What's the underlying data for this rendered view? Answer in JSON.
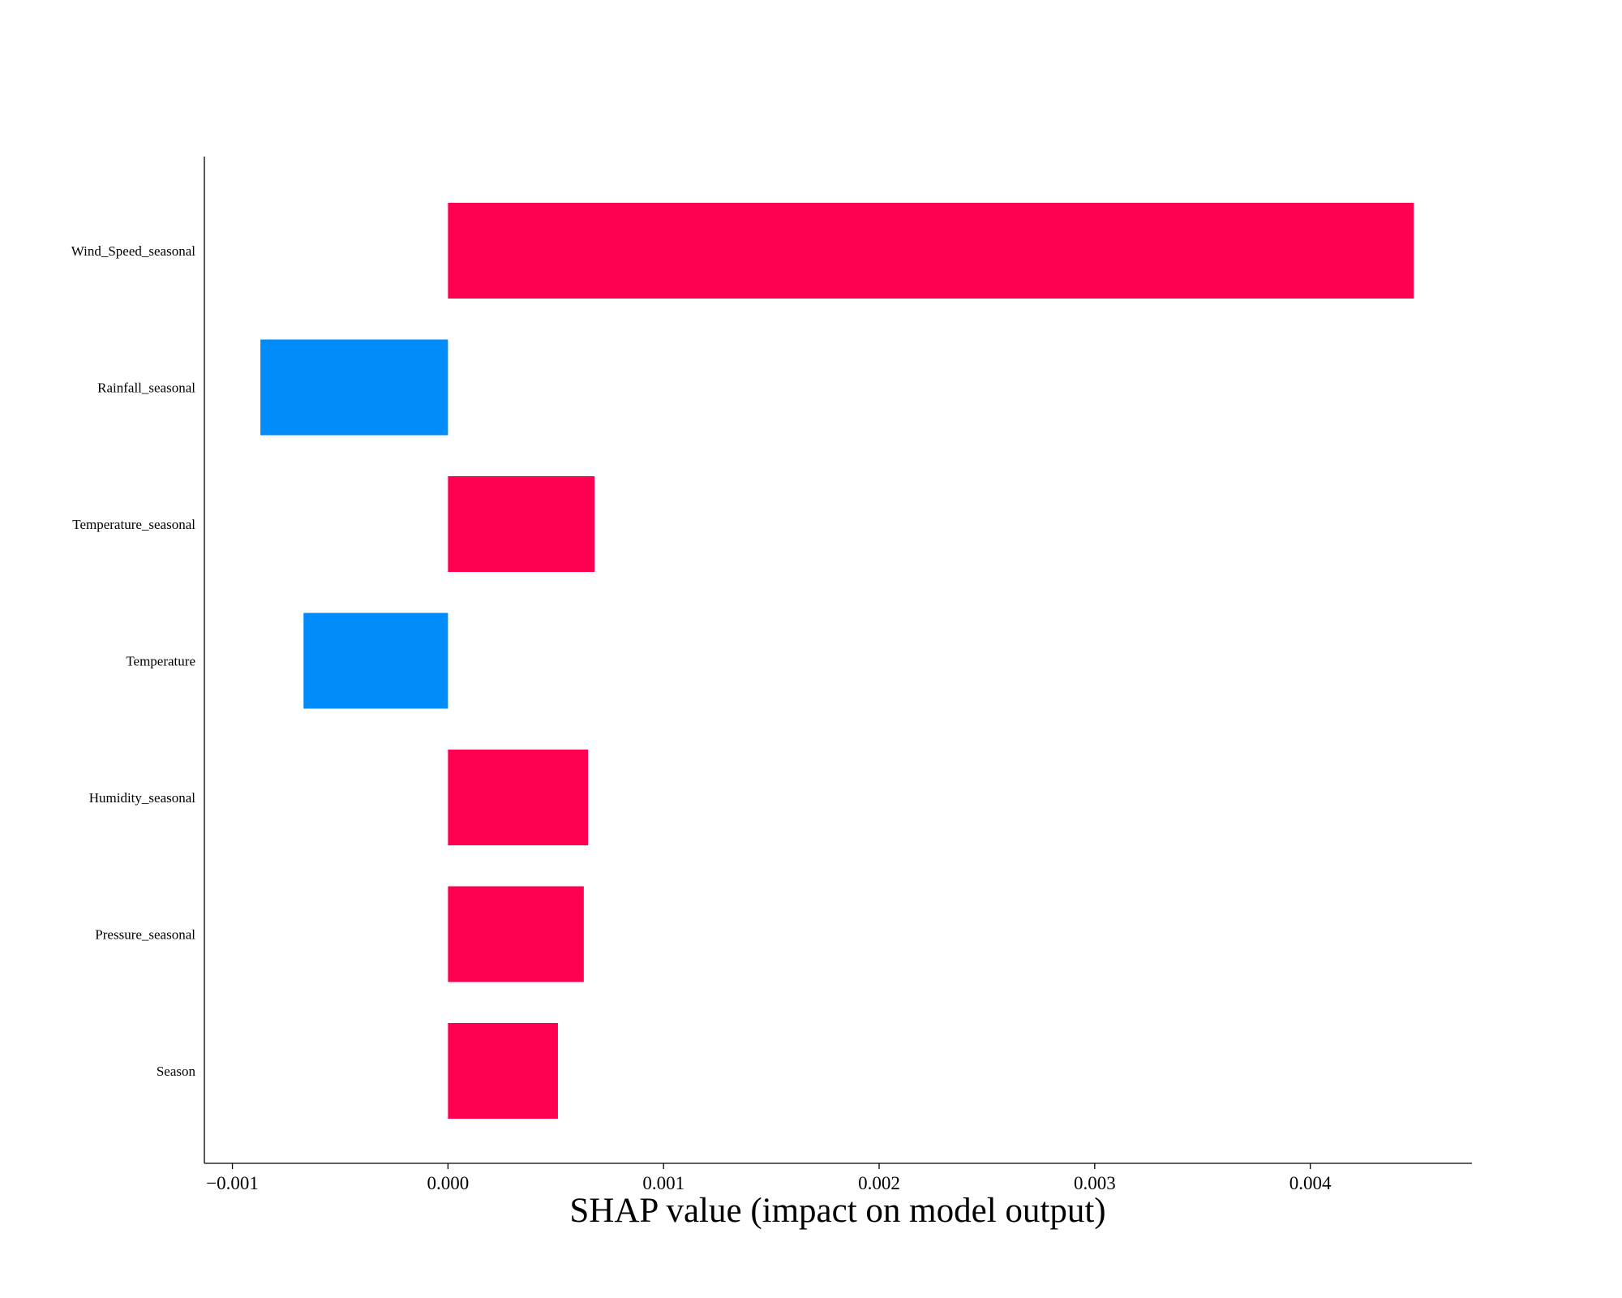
{
  "chart_data": {
    "type": "bar",
    "orientation": "horizontal",
    "categories": [
      "Wind_Speed_seasonal",
      "Rainfall_seasonal",
      "Temperature_seasonal",
      "Temperature",
      "Humidity_seasonal",
      "Pressure_seasonal",
      "Season"
    ],
    "values": [
      0.00448,
      -0.00087,
      0.00068,
      -0.00067,
      0.00065,
      0.00063,
      0.00051
    ],
    "xlabel": "SHAP value (impact on model output)",
    "ylabel": "",
    "title": "",
    "xlim": [
      -0.00113,
      0.00475
    ],
    "xticks": [
      -0.001,
      0.0,
      0.001,
      0.002,
      0.003,
      0.004
    ],
    "xtick_labels": [
      "−0.001",
      "0.000",
      "0.001",
      "0.002",
      "0.003",
      "0.004"
    ],
    "colors": {
      "positive": "#ff0051",
      "negative": "#008bfb"
    },
    "grid": false,
    "legend": "none"
  }
}
